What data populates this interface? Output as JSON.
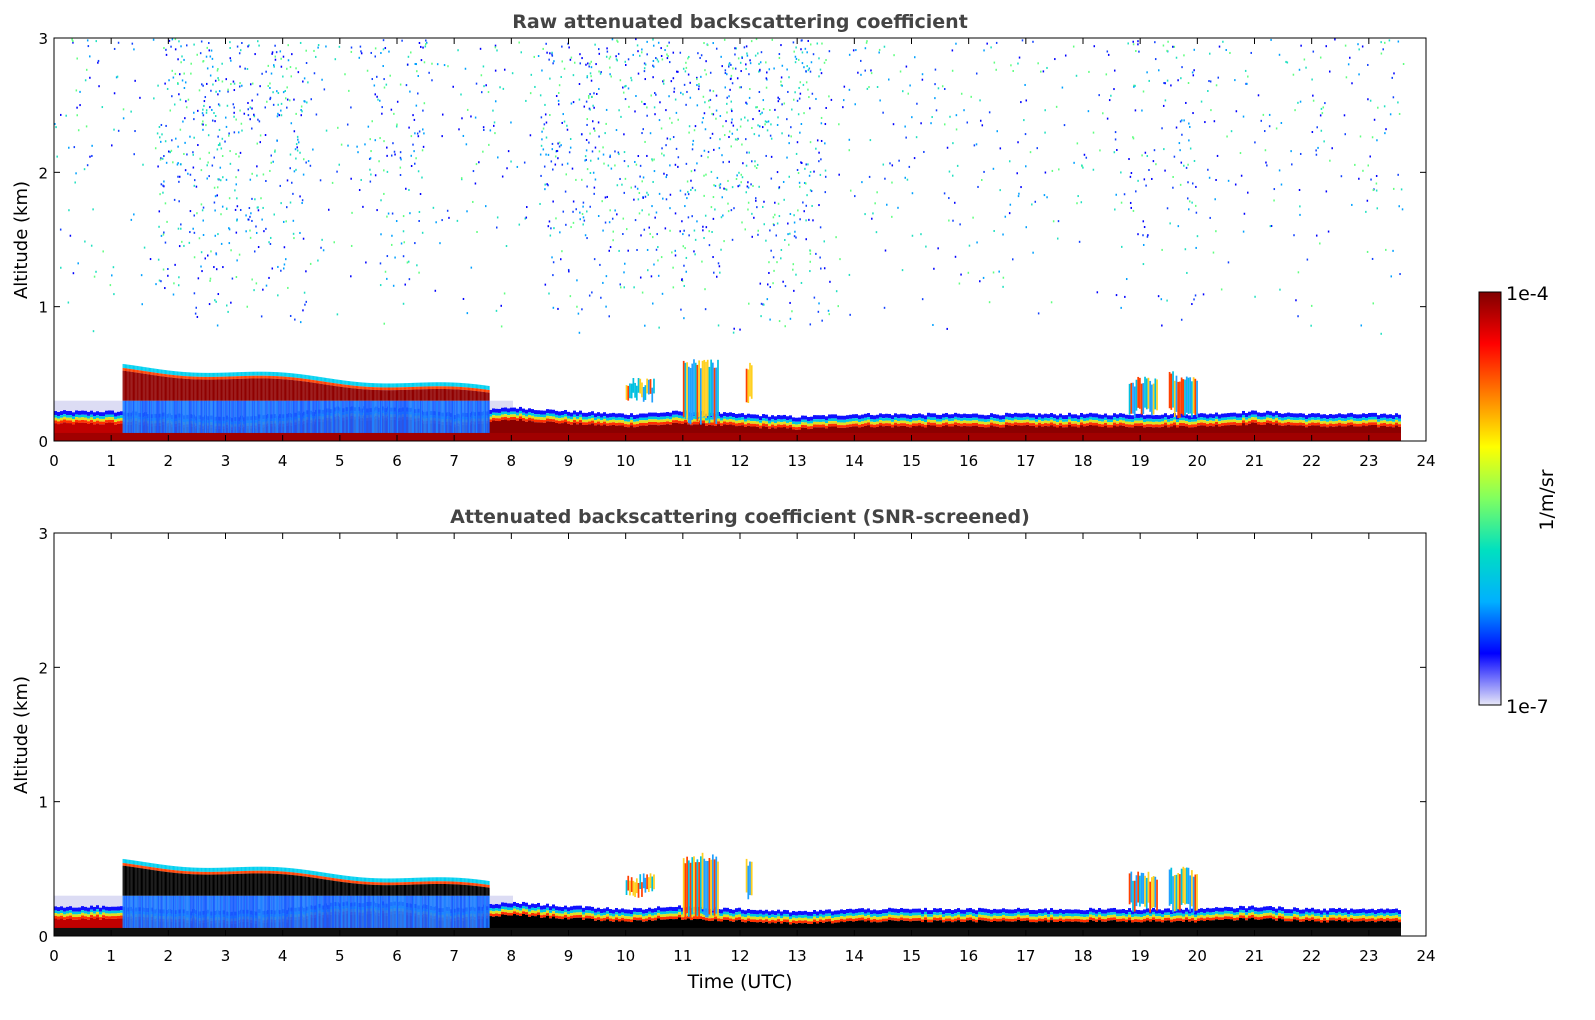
{
  "chart_data": [
    {
      "type": "heatmap",
      "title": "Raw attenuated backscattering coefficient",
      "xlabel": "",
      "ylabel": "Altitude (km)",
      "xlim": [
        0,
        24
      ],
      "ylim": [
        0,
        3
      ],
      "xticks": [
        0,
        1,
        2,
        3,
        4,
        5,
        6,
        7,
        8,
        9,
        10,
        11,
        12,
        13,
        14,
        15,
        16,
        17,
        18,
        19,
        20,
        21,
        22,
        23,
        24
      ],
      "yticks": [
        0,
        1,
        2,
        3
      ],
      "noise": "scattered low-level speckle up to 3 km",
      "layers": [
        {
          "name": "surface-layer",
          "x": [
            0,
            23.6
          ],
          "bottom_km": 0,
          "top_km": 0.08,
          "level": "1e-4"
        },
        {
          "name": "boundary-layer",
          "x": [
            0,
            23.6
          ],
          "top_km": [
            0.22,
            0.22,
            0.2,
            0.18,
            0.2,
            0.25,
            0.25,
            0.2,
            0.25,
            0.22,
            0.2,
            0.22,
            0.2,
            0.18,
            0.2,
            0.2,
            0.2,
            0.2,
            0.2,
            0.2,
            0.2,
            0.22,
            0.2,
            0.2,
            0.2
          ]
        },
        {
          "name": "elevated-layer",
          "x": [
            1.2,
            7.6
          ],
          "top_km": 0.56,
          "bottom_km": 0.28
        }
      ]
    },
    {
      "type": "heatmap",
      "title": "Attenuated backscattering coefficient (SNR-screened)",
      "xlabel": "Time (UTC)",
      "ylabel": "Altitude (km)",
      "xlim": [
        0,
        24
      ],
      "ylim": [
        0,
        3
      ],
      "xticks": [
        0,
        1,
        2,
        3,
        4,
        5,
        6,
        7,
        8,
        9,
        10,
        11,
        12,
        13,
        14,
        15,
        16,
        17,
        18,
        19,
        20,
        21,
        22,
        23,
        24
      ],
      "yticks": [
        0,
        1,
        2,
        3
      ],
      "noise": "none"
    }
  ],
  "colorbar": {
    "label": "1/m/sr",
    "max_label": "1e-4",
    "min_label": "1e-7",
    "colormap": [
      "#e8e8f8",
      "#0000ff",
      "#00b0ff",
      "#00e0c0",
      "#80ff60",
      "#ffff00",
      "#ff8000",
      "#ff0000",
      "#800000"
    ]
  }
}
